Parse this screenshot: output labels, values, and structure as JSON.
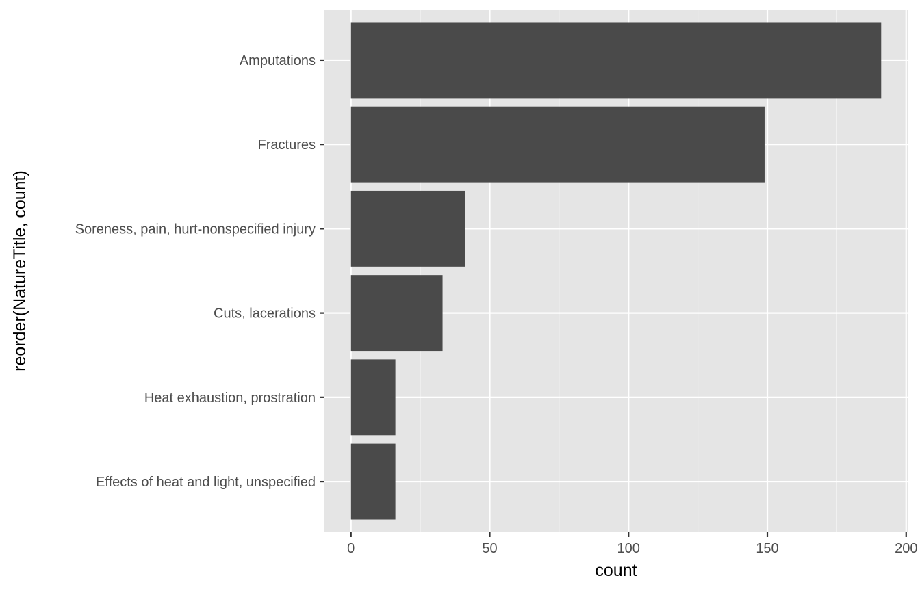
{
  "chart_data": {
    "type": "bar",
    "orientation": "horizontal",
    "categories": [
      "Amputations",
      "Fractures",
      "Soreness, pain, hurt-nonspecified injury",
      "Cuts, lacerations",
      "Heat exhaustion, prostration",
      "Effects of heat and light, unspecified"
    ],
    "values": [
      191,
      149,
      41,
      33,
      16,
      16
    ],
    "xlabel": "count",
    "ylabel": "reorder(NatureTitle, count)",
    "xlim": [
      -9.55,
      200.55
    ],
    "x_ticks": [
      0,
      50,
      100,
      150,
      200
    ],
    "x_tick_labels": [
      "0",
      "50",
      "100",
      "150",
      "200"
    ],
    "grid": true,
    "colors": {
      "panel_background": "#e5e5e5",
      "bar_fill": "#4a4a4a",
      "grid_major": "#ffffff",
      "grid_minor": "#f2f2f2"
    }
  }
}
